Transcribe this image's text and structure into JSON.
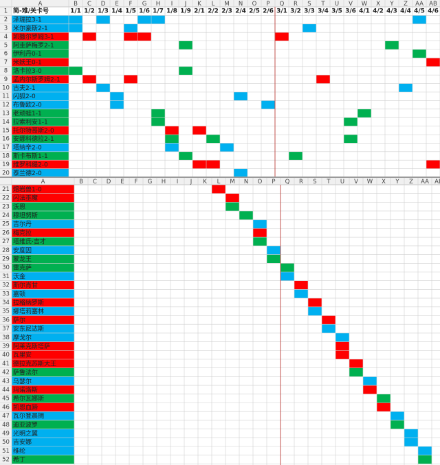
{
  "top_pane": {
    "column_headers": [
      "A",
      "B",
      "C",
      "D",
      "E",
      "F",
      "G",
      "H",
      "I",
      "J",
      "K",
      "L",
      "M",
      "N",
      "O",
      "P",
      "Q",
      "R",
      "S",
      "T",
      "U",
      "V",
      "W",
      "X",
      "Y",
      "Z",
      "AA",
      "AB"
    ],
    "header_row": {
      "row": 1,
      "label": "简-难/关卡号",
      "dates": [
        "1/1",
        "1/2",
        "1/3",
        "1/4",
        "1/5",
        "1/6",
        "1/7",
        "1/8",
        "1/9",
        "2/1",
        "2/2",
        "2/3",
        "2/4",
        "2/5",
        "2/6",
        "3/1",
        "3/2",
        "3/3",
        "3/4",
        "3/5",
        "3/6",
        "4/1",
        "4/2",
        "4/3",
        "4/4",
        "4/5",
        "4/6"
      ]
    },
    "rows": [
      {
        "row": 2,
        "name": "泽瑞拉3-1",
        "color": "#00b0f0",
        "cells": [
          "B",
          "D",
          "G",
          "H",
          "AA"
        ]
      },
      {
        "row": 3,
        "name": "米尔豪斯2-1",
        "color": "#00b0f0",
        "cells": [
          "B",
          "F",
          "S"
        ]
      },
      {
        "row": 4,
        "name": "凯撒尔罗姆3-1",
        "color": "#ff0000",
        "cells": [
          "C",
          "F",
          "G",
          "Q"
        ]
      },
      {
        "row": 5,
        "name": "阿圭萨梅罗2-1",
        "color": "#00b050",
        "cells": [
          "J",
          "Y"
        ]
      },
      {
        "row": 6,
        "name": "伊利丹0-1",
        "color": "#00b050",
        "cells": [
          "AA"
        ]
      },
      {
        "row": 7,
        "name": "米妖王0-1",
        "color": "#ff0000",
        "cells": [
          "AB"
        ]
      },
      {
        "row": 8,
        "name": "洛卡拉3-0",
        "color": "#00b050",
        "cells": [
          "B",
          "J"
        ]
      },
      {
        "row": 9,
        "name": "孟内尔斯罗姆2-1",
        "color": "#ff0000",
        "cells": [
          "C",
          "F",
          "T"
        ]
      },
      {
        "row": 10,
        "name": "古夫2-1",
        "color": "#00b0f0",
        "cells": [
          "D",
          "Z"
        ]
      },
      {
        "row": 11,
        "name": "闪狐2-0",
        "color": "#00b0f0",
        "cells": [
          "E",
          "N"
        ]
      },
      {
        "row": 12,
        "name": "布鲁欧2-0",
        "color": "#00b0f0",
        "cells": [
          "E",
          "P"
        ]
      },
      {
        "row": 13,
        "name": "老顽蛙1-1",
        "color": "#00b050",
        "cells": [
          "H",
          "W"
        ]
      },
      {
        "row": 14,
        "name": "拉索利安1-1",
        "color": "#00b050",
        "cells": [
          "H",
          "V"
        ]
      },
      {
        "row": 15,
        "name": "托尔特哥斯2-0",
        "color": "#ff0000",
        "cells": [
          "I",
          "K"
        ]
      },
      {
        "row": 16,
        "name": "安娜科德拉2-1",
        "color": "#00b050",
        "cells": [
          "I",
          "L",
          "V"
        ]
      },
      {
        "row": 17,
        "name": "塔纳辛2-0",
        "color": "#00b0f0",
        "cells": [
          "I",
          "M"
        ]
      },
      {
        "row": 18,
        "name": "斯卡布斯1-1",
        "color": "#00b050",
        "cells": [
          "J",
          "R"
        ]
      },
      {
        "row": 19,
        "name": "维罗科缇2-0",
        "color": "#ff0000",
        "cells": [
          "K",
          "L",
          "AB"
        ]
      },
      {
        "row": 20,
        "name": "泰兰德2-0",
        "color": "#00b0f0",
        "cells": [
          "N"
        ]
      }
    ]
  },
  "bottom_pane": {
    "column_headers": [
      "A",
      "B",
      "C",
      "D",
      "E",
      "F",
      "G",
      "H",
      "I",
      "J",
      "K",
      "L",
      "M",
      "N",
      "O",
      "P",
      "Q",
      "R",
      "S",
      "T",
      "U",
      "V",
      "W",
      "X",
      "Y",
      "Z",
      "AA",
      "AB"
    ],
    "rows": [
      {
        "row": 21,
        "name": "熔岩兽1-0",
        "color": "#ff0000",
        "cells": [
          "L"
        ]
      },
      {
        "row": 22,
        "name": "闪法巫魔",
        "color": "#ff0000",
        "cells": [
          "M"
        ]
      },
      {
        "row": 23,
        "name": "沃恩",
        "color": "#00b050",
        "cells": [
          "M"
        ]
      },
      {
        "row": 24,
        "name": "穆坦努斯",
        "color": "#00b050",
        "cells": [
          "N"
        ]
      },
      {
        "row": 25,
        "name": "吉尔丹",
        "color": "#00b0f0",
        "cells": [
          "O"
        ]
      },
      {
        "row": 26,
        "name": "梅克拉",
        "color": "#ff0000",
        "cells": [
          "O"
        ]
      },
      {
        "row": 27,
        "name": "塔维氏·吉才",
        "color": "#00b050",
        "cells": [
          "O"
        ]
      },
      {
        "row": 28,
        "name": "安度因",
        "color": "#00b0f0",
        "cells": [
          "P"
        ]
      },
      {
        "row": 29,
        "name": "蒙龙王",
        "color": "#00b050",
        "cells": [
          "P"
        ]
      },
      {
        "row": 30,
        "name": "雷克萨",
        "color": "#00b050",
        "cells": [
          "Q"
        ]
      },
      {
        "row": 31,
        "name": "沃金",
        "color": "#00b0f0",
        "cells": [
          "Q"
        ]
      },
      {
        "row": 32,
        "name": "斯尔肖甘",
        "color": "#ff0000",
        "cells": [
          "R"
        ]
      },
      {
        "row": 33,
        "name": "嘉顿",
        "color": "#00b0f0",
        "cells": [
          "R"
        ]
      },
      {
        "row": 34,
        "name": "拉格纳罗斯",
        "color": "#ff0000",
        "cells": [
          "S"
        ]
      },
      {
        "row": 35,
        "name": "娜塔莉塞林",
        "color": "#00b0f0",
        "cells": [
          "S"
        ]
      },
      {
        "row": 36,
        "name": "萨尔",
        "color": "#ff0000",
        "cells": [
          "T"
        ]
      },
      {
        "row": 37,
        "name": "安东尼达斯",
        "color": "#00b0f0",
        "cells": [
          "T"
        ]
      },
      {
        "row": 38,
        "name": "摩戈尔",
        "color": "#00b0f0",
        "cells": [
          "U"
        ]
      },
      {
        "row": 39,
        "name": "阿莱克斯塔萨",
        "color": "#ff0000",
        "cells": [
          "U"
        ]
      },
      {
        "row": 40,
        "name": "瓦里安",
        "color": "#ff0000",
        "cells": [
          "U"
        ]
      },
      {
        "row": 41,
        "name": "德拉克苏斯大王",
        "color": "#ff0000",
        "cells": [
          "V"
        ]
      },
      {
        "row": 42,
        "name": "萨鲁法尔",
        "color": "#00b050",
        "cells": [
          "V"
        ]
      },
      {
        "row": 43,
        "name": "乌瑟尔",
        "color": "#00b0f0",
        "cells": [
          "W"
        ]
      },
      {
        "row": 44,
        "name": "玛诺洛斯",
        "color": "#ff0000",
        "cells": [
          "W"
        ]
      },
      {
        "row": 45,
        "name": "希尔瓦娜斯",
        "color": "#00b050",
        "cells": [
          "X"
        ]
      },
      {
        "row": 46,
        "name": "凯恩血蹄",
        "color": "#ff0000",
        "cells": [
          "X"
        ]
      },
      {
        "row": 47,
        "name": "瓦尔登晨拥",
        "color": "#00b0f0",
        "cells": [
          "Y"
        ]
      },
      {
        "row": 48,
        "name": "迪亚波罗",
        "color": "#00b050",
        "cells": [
          "Y"
        ]
      },
      {
        "row": 49,
        "name": "光明之翼",
        "color": "#00b0f0",
        "cells": [
          "Z"
        ]
      },
      {
        "row": 50,
        "name": "吉安娜",
        "color": "#00b0f0",
        "cells": [
          "Z"
        ]
      },
      {
        "row": 51,
        "name": "维纶",
        "color": "#00b0f0",
        "cells": [
          "AA"
        ]
      },
      {
        "row": 52,
        "name": "希丁",
        "color": "#00b050",
        "cells": [
          "AA"
        ]
      }
    ]
  }
}
